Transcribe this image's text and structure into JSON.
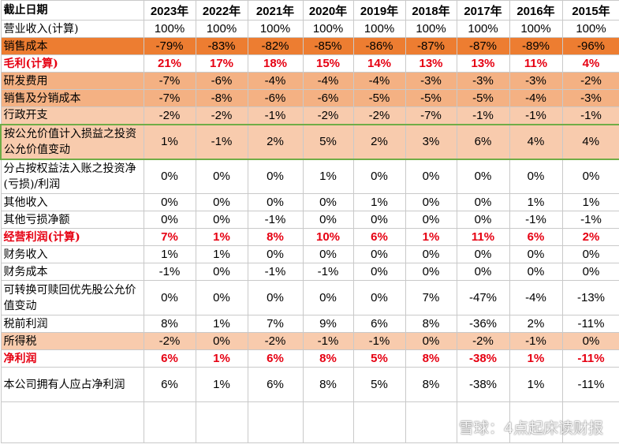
{
  "header": [
    "截止日期",
    "2023年",
    "2022年",
    "2021年",
    "2020年",
    "2019年",
    "2018年",
    "2017年",
    "2016年",
    "2015年"
  ],
  "rows": [
    {
      "label": "营业收入(计算)",
      "values": [
        "100%",
        "100%",
        "100%",
        "100%",
        "100%",
        "100%",
        "100%",
        "100%",
        "100%"
      ]
    },
    {
      "label": "销售成本",
      "values": [
        "-79%",
        "-83%",
        "-82%",
        "-85%",
        "-86%",
        "-87%",
        "-87%",
        "-89%",
        "-96%"
      ]
    },
    {
      "label": "毛利(计算)",
      "values": [
        "21%",
        "17%",
        "18%",
        "15%",
        "14%",
        "13%",
        "13%",
        "11%",
        "4%"
      ]
    },
    {
      "label": "研发费用",
      "values": [
        "-7%",
        "-6%",
        "-4%",
        "-4%",
        "-4%",
        "-3%",
        "-3%",
        "-3%",
        "-2%"
      ]
    },
    {
      "label": "销售及分销成本",
      "values": [
        "-7%",
        "-8%",
        "-6%",
        "-6%",
        "-5%",
        "-5%",
        "-5%",
        "-4%",
        "-3%"
      ]
    },
    {
      "label": "行政开支",
      "values": [
        "-2%",
        "-2%",
        "-1%",
        "-2%",
        "-2%",
        "-7%",
        "-1%",
        "-1%",
        "-1%"
      ]
    },
    {
      "label": "按公允价值计入损益之投资公允价值变动",
      "values": [
        "1%",
        "-1%",
        "2%",
        "5%",
        "2%",
        "3%",
        "6%",
        "4%",
        "4%"
      ]
    },
    {
      "label": "分占按权益法入账之投资净(亏损)/利润",
      "values": [
        "0%",
        "0%",
        "0%",
        "1%",
        "0%",
        "0%",
        "0%",
        "0%",
        "0%"
      ]
    },
    {
      "label": "其他收入",
      "values": [
        "0%",
        "0%",
        "0%",
        "0%",
        "1%",
        "0%",
        "0%",
        "1%",
        "1%"
      ]
    },
    {
      "label": "其他亏损净额",
      "values": [
        "0%",
        "0%",
        "-1%",
        "0%",
        "0%",
        "0%",
        "0%",
        "-1%",
        "-1%"
      ]
    },
    {
      "label": "经营利润(计算)",
      "values": [
        "7%",
        "1%",
        "8%",
        "10%",
        "6%",
        "1%",
        "11%",
        "6%",
        "2%"
      ]
    },
    {
      "label": "财务收入",
      "values": [
        "1%",
        "1%",
        "0%",
        "0%",
        "0%",
        "0%",
        "0%",
        "0%",
        "0%"
      ]
    },
    {
      "label": "财务成本",
      "values": [
        "-1%",
        "0%",
        "-1%",
        "-1%",
        "0%",
        "0%",
        "0%",
        "0%",
        "0%"
      ]
    },
    {
      "label": "可转换可赎回优先股公允价值变动",
      "values": [
        "0%",
        "0%",
        "0%",
        "0%",
        "0%",
        "7%",
        "-47%",
        "-4%",
        "-13%"
      ]
    },
    {
      "label": "税前利润",
      "values": [
        "8%",
        "1%",
        "7%",
        "9%",
        "6%",
        "8%",
        "-36%",
        "2%",
        "-11%"
      ]
    },
    {
      "label": "所得税",
      "values": [
        "-2%",
        "0%",
        "-2%",
        "-1%",
        "-1%",
        "0%",
        "-2%",
        "-1%",
        "0%"
      ]
    },
    {
      "label": "净利润",
      "values": [
        "6%",
        "1%",
        "6%",
        "8%",
        "5%",
        "8%",
        "-38%",
        "1%",
        "-11%"
      ]
    },
    {
      "label": "本公司拥有人应占净利润",
      "values": [
        "6%",
        "1%",
        "6%",
        "8%",
        "5%",
        "8%",
        "-38%",
        "1%",
        "-11%"
      ]
    }
  ],
  "watermark": {
    "text": "雪球：4点起床读财报",
    "icon": "snowball-logo-icon"
  }
}
